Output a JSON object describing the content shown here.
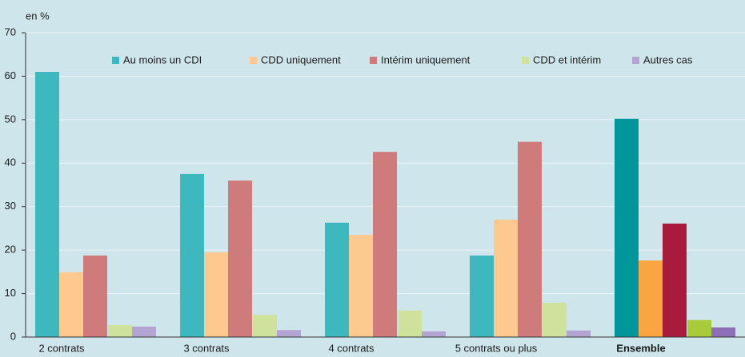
{
  "chart_data": {
    "type": "bar",
    "y_unit_label": "en %",
    "categories": [
      "2 contrats",
      "3 contrats",
      "4 contrats",
      "5 contrats ou plus",
      "Ensemble"
    ],
    "series": [
      {
        "name": "Au moins un CDI",
        "color": "#3db8bf",
        "colors": [
          "#3db8bf",
          "#3db8bf",
          "#3db8bf",
          "#3db8bf",
          "#00979c"
        ],
        "values": [
          61.0,
          37.5,
          26.3,
          18.75,
          50.2
        ]
      },
      {
        "name": "CDD uniquement",
        "color": "#fdc98f",
        "colors": [
          "#fdc98f",
          "#fdc98f",
          "#fdc98f",
          "#fdc98f",
          "#f9a541"
        ],
        "values": [
          14.9,
          19.5,
          23.5,
          27.0,
          17.6
        ]
      },
      {
        "name": "Intérim uniquement",
        "color": "#d07b7b",
        "colors": [
          "#d07b7b",
          "#d07b7b",
          "#d07b7b",
          "#d07b7b",
          "#a81b3c"
        ],
        "values": [
          18.75,
          36.0,
          42.6,
          44.9,
          26.1
        ]
      },
      {
        "name": "CDD et intérim",
        "color": "#cfe29b",
        "colors": [
          "#cfe29b",
          "#cfe29b",
          "#cfe29b",
          "#cfe29b",
          "#a8cb3a"
        ],
        "values": [
          2.75,
          5.1,
          6.1,
          7.9,
          3.9
        ]
      },
      {
        "name": "Autres cas",
        "color": "#b3a4d4",
        "colors": [
          "#b3a4d4",
          "#b3a4d4",
          "#b3a4d4",
          "#b3a4d4",
          "#8d6fb5"
        ],
        "values": [
          2.4,
          1.6,
          1.3,
          1.5,
          2.2
        ]
      }
    ],
    "ylim": [
      0,
      70
    ],
    "yticks": [
      0,
      10,
      20,
      30,
      40,
      50,
      60,
      70
    ],
    "grid": true
  }
}
